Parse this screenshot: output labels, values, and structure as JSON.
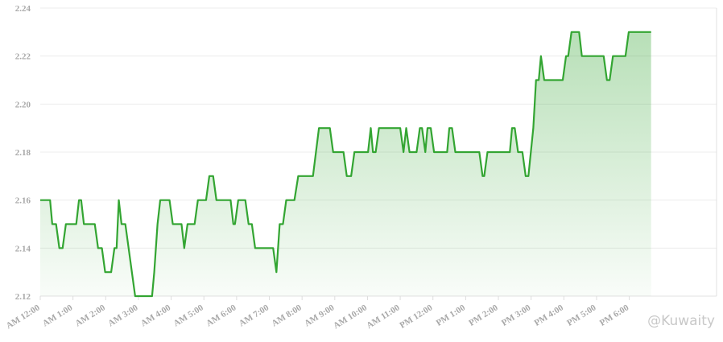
{
  "chart_data": {
    "type": "line",
    "x": [
      0,
      18,
      22,
      29,
      35,
      41,
      47,
      66,
      71,
      75,
      80,
      100,
      106,
      113,
      119,
      130,
      136,
      140,
      144,
      149,
      156,
      174,
      205,
      209,
      215,
      220,
      237,
      243,
      259,
      264,
      270,
      283,
      289,
      304,
      310,
      317,
      323,
      349,
      354,
      357,
      363,
      376,
      382,
      388,
      394,
      427,
      433,
      439,
      445,
      451,
      466,
      473,
      500,
      511,
      531,
      537,
      556,
      562,
      570,
      576,
      601,
      606,
      610,
      615,
      621,
      660,
      666,
      671,
      677,
      690,
      696,
      700,
      706,
      710,
      716,
      722,
      746,
      750,
      755,
      761,
      805,
      811,
      814,
      820,
      861,
      865,
      870,
      876,
      884,
      890,
      895,
      904,
      909,
      914,
      918,
      924,
      958,
      964,
      968,
      974,
      988,
      993,
      1033,
      1039,
      1044,
      1050,
      1073,
      1079,
      1120
    ],
    "series": [
      {
        "color": "#33a532",
        "values": [
          2.16,
          2.16,
          2.15,
          2.15,
          2.14,
          2.14,
          2.15,
          2.15,
          2.16,
          2.16,
          2.15,
          2.15,
          2.14,
          2.14,
          2.13,
          2.13,
          2.14,
          2.14,
          2.16,
          2.15,
          2.15,
          2.12,
          2.12,
          2.13,
          2.15,
          2.16,
          2.16,
          2.15,
          2.15,
          2.14,
          2.15,
          2.15,
          2.16,
          2.16,
          2.17,
          2.17,
          2.16,
          2.16,
          2.15,
          2.15,
          2.16,
          2.16,
          2.15,
          2.15,
          2.14,
          2.14,
          2.13,
          2.15,
          2.15,
          2.16,
          2.16,
          2.17,
          2.17,
          2.19,
          2.19,
          2.18,
          2.18,
          2.17,
          2.17,
          2.18,
          2.18,
          2.19,
          2.18,
          2.18,
          2.19,
          2.19,
          2.18,
          2.19,
          2.18,
          2.18,
          2.19,
          2.19,
          2.18,
          2.19,
          2.19,
          2.18,
          2.18,
          2.19,
          2.19,
          2.18,
          2.18,
          2.17,
          2.17,
          2.18,
          2.18,
          2.19,
          2.19,
          2.18,
          2.18,
          2.17,
          2.17,
          2.19,
          2.21,
          2.21,
          2.22,
          2.21,
          2.21,
          2.22,
          2.22,
          2.23,
          2.23,
          2.22,
          2.22,
          2.21,
          2.21,
          2.22,
          2.22,
          2.23,
          2.23
        ]
      }
    ],
    "xlim": [
      0,
      1240
    ],
    "xticks": [
      {
        "value": 0,
        "label": "AM 12:00"
      },
      {
        "value": 60,
        "label": "AM 1:00"
      },
      {
        "value": 120,
        "label": "AM 2:00"
      },
      {
        "value": 180,
        "label": "AM 3:00"
      },
      {
        "value": 240,
        "label": "AM 4:00"
      },
      {
        "value": 300,
        "label": "AM 5:00"
      },
      {
        "value": 360,
        "label": "AM 6:00"
      },
      {
        "value": 420,
        "label": "AM 7:00"
      },
      {
        "value": 480,
        "label": "AM 8:00"
      },
      {
        "value": 540,
        "label": "AM 9:00"
      },
      {
        "value": 600,
        "label": "AM 10:00"
      },
      {
        "value": 660,
        "label": "AM 11:00"
      },
      {
        "value": 720,
        "label": "PM 12:00"
      },
      {
        "value": 780,
        "label": "PM 1:00"
      },
      {
        "value": 840,
        "label": "PM 2:00"
      },
      {
        "value": 900,
        "label": "PM 3:00"
      },
      {
        "value": 960,
        "label": "PM 4:00"
      },
      {
        "value": 1020,
        "label": "PM 5:00"
      },
      {
        "value": 1080,
        "label": "PM 6:00"
      }
    ],
    "ylim": [
      2.12,
      2.24
    ],
    "yticks": [
      2.12,
      2.14,
      2.16,
      2.18,
      {
        "value": 2.2,
        "label": "2.20"
      },
      2.22,
      2.24
    ],
    "grid": true,
    "watermark": "@Kuwaity"
  }
}
